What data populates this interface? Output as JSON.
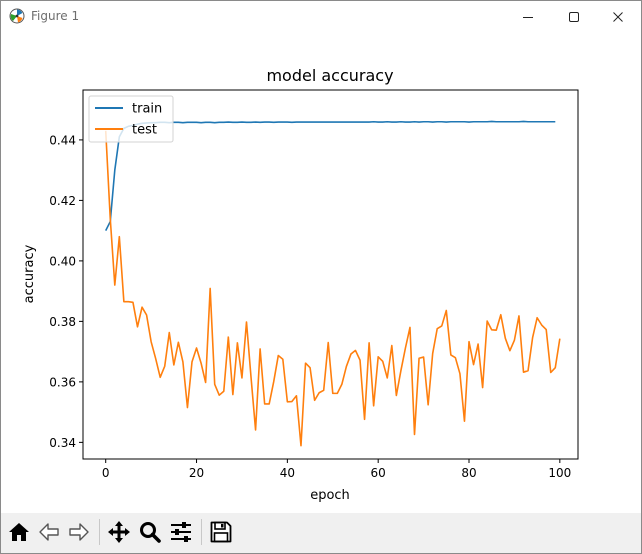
{
  "window": {
    "title": "Figure 1",
    "icons": {
      "app": "matplotlib-logo-icon",
      "minimize": "minimize-icon",
      "maximize": "maximize-icon",
      "close": "close-icon"
    }
  },
  "toolbar": {
    "buttons": [
      {
        "name": "home",
        "icon": "home-icon"
      },
      {
        "name": "back",
        "icon": "arrow-left-icon"
      },
      {
        "name": "forward",
        "icon": "arrow-right-icon"
      },
      {
        "name": "pan",
        "icon": "move-arrows-icon"
      },
      {
        "name": "zoom",
        "icon": "magnifier-icon"
      },
      {
        "name": "configure-subplots",
        "icon": "sliders-icon"
      },
      {
        "name": "save",
        "icon": "floppy-disk-icon"
      }
    ]
  },
  "chart_data": {
    "type": "line",
    "title": "model accuracy",
    "xlabel": "epoch",
    "ylabel": "accuracy",
    "xlim": [
      -5,
      104
    ],
    "ylim": [
      0.3345,
      0.4565
    ],
    "xticks": [
      0,
      20,
      40,
      60,
      80,
      100
    ],
    "xtick_labels": [
      "0",
      "20",
      "40",
      "60",
      "80",
      "100"
    ],
    "yticks": [
      0.34,
      0.36,
      0.38,
      0.4,
      0.42,
      0.44
    ],
    "ytick_labels": [
      "0.34",
      "0.36",
      "0.38",
      "0.40",
      "0.42",
      "0.44"
    ],
    "grid": false,
    "legend": {
      "placement": "top-left"
    },
    "colors": {
      "train": "#1f77b4",
      "test": "#ff7f0e"
    },
    "series": [
      {
        "name": "train",
        "color": "#1f77b4",
        "values": [
          0.41,
          0.413,
          0.43,
          0.441,
          0.4438,
          0.4445,
          0.4448,
          0.4452,
          0.4455,
          0.4456,
          0.4457,
          0.4457,
          0.4458,
          0.4458,
          0.4457,
          0.4458,
          0.4458,
          0.4457,
          0.4458,
          0.4458,
          0.4458,
          0.4457,
          0.4458,
          0.4458,
          0.4457,
          0.4458,
          0.4458,
          0.4459,
          0.4458,
          0.4458,
          0.4459,
          0.4458,
          0.4458,
          0.4459,
          0.4458,
          0.4459,
          0.4459,
          0.4458,
          0.4459,
          0.4459,
          0.4459,
          0.4458,
          0.4459,
          0.4459,
          0.4459,
          0.4459,
          0.4459,
          0.4459,
          0.4459,
          0.4459,
          0.4459,
          0.4459,
          0.4459,
          0.4459,
          0.4459,
          0.4459,
          0.4459,
          0.4459,
          0.4459,
          0.446,
          0.4459,
          0.4459,
          0.446,
          0.4459,
          0.4459,
          0.446,
          0.4459,
          0.4459,
          0.446,
          0.4459,
          0.446,
          0.446,
          0.4459,
          0.446,
          0.446,
          0.4459,
          0.446,
          0.446,
          0.446,
          0.446,
          0.4459,
          0.446,
          0.446,
          0.446,
          0.446,
          0.4461,
          0.446,
          0.446,
          0.446,
          0.446,
          0.446,
          0.446,
          0.4461,
          0.446,
          0.446,
          0.446,
          0.446,
          0.446,
          0.446,
          0.446
        ]
      },
      {
        "name": "test",
        "color": "#ff7f0e",
        "values": [
          0.443,
          0.414,
          0.392,
          0.408,
          0.3865,
          0.3865,
          0.3863,
          0.3782,
          0.3847,
          0.3821,
          0.3733,
          0.3677,
          0.3615,
          0.3652,
          0.3763,
          0.3656,
          0.3731,
          0.3666,
          0.3515,
          0.3666,
          0.3712,
          0.3662,
          0.3598,
          0.3909,
          0.3592,
          0.3556,
          0.3569,
          0.3748,
          0.3558,
          0.3729,
          0.3613,
          0.3798,
          0.3615,
          0.3441,
          0.3709,
          0.3527,
          0.3527,
          0.3601,
          0.3687,
          0.3675,
          0.3534,
          0.3535,
          0.3554,
          0.3389,
          0.3662,
          0.3647,
          0.3539,
          0.3564,
          0.3572,
          0.373,
          0.3562,
          0.3562,
          0.3592,
          0.3651,
          0.3692,
          0.3704,
          0.3672,
          0.3476,
          0.3729,
          0.3521,
          0.3683,
          0.3668,
          0.3613,
          0.372,
          0.3555,
          0.3637,
          0.3712,
          0.378,
          0.3426,
          0.3678,
          0.3682,
          0.3524,
          0.3694,
          0.3776,
          0.3785,
          0.3836,
          0.3689,
          0.368,
          0.3627,
          0.347,
          0.3733,
          0.3657,
          0.3725,
          0.3581,
          0.3801,
          0.3772,
          0.3771,
          0.3822,
          0.3744,
          0.3703,
          0.3738,
          0.3818,
          0.3632,
          0.3637,
          0.3746,
          0.3812,
          0.3788,
          0.3773,
          0.3631,
          0.3647,
          0.3743
        ]
      }
    ]
  }
}
